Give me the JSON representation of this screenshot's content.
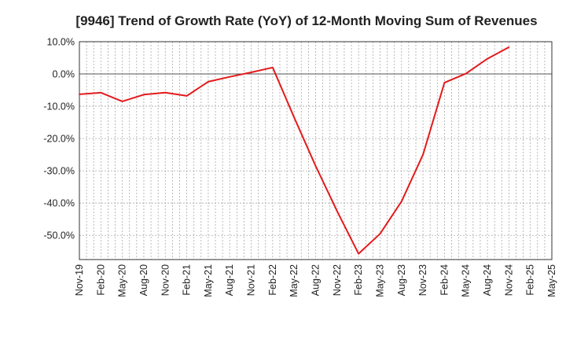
{
  "chart_data": {
    "type": "line",
    "title": "[9946]  Trend of Growth Rate (YoY) of 12-Month Moving Sum of Revenues",
    "xlabel": "",
    "ylabel": "",
    "ylim": [
      -57.5,
      10
    ],
    "yticks": [
      10,
      0,
      -10,
      -20,
      -30,
      -40,
      -50
    ],
    "ytick_labels": [
      "10.0%",
      "0.0%",
      "-10.0%",
      "-20.0%",
      "-30.0%",
      "-40.0%",
      "-50.0%"
    ],
    "xtick_labels": [
      "Nov-19",
      "Feb-20",
      "May-20",
      "Aug-20",
      "Nov-20",
      "Feb-21",
      "May-21",
      "Aug-21",
      "Nov-21",
      "Feb-22",
      "May-22",
      "Aug-22",
      "Nov-22",
      "Feb-23",
      "May-23",
      "Aug-23",
      "Nov-23",
      "Feb-24",
      "May-24",
      "Aug-24",
      "Nov-24",
      "Feb-25",
      "May-25"
    ],
    "grid": true,
    "line_color": "#e31a1c",
    "series": [
      {
        "x": [
          "Nov-19",
          "Feb-20",
          "May-20",
          "Aug-20",
          "Nov-20",
          "Feb-21",
          "May-21",
          "Aug-21",
          "Nov-21",
          "Feb-22",
          "May-22",
          "Aug-22",
          "Nov-22",
          "Feb-23",
          "May-23",
          "Aug-23",
          "Nov-23",
          "Feb-24",
          "May-24",
          "Aug-24",
          "Nov-24"
        ],
        "values": [
          -6.3,
          -5.8,
          -8.5,
          -6.4,
          -5.8,
          -6.8,
          -2.4,
          -0.9,
          0.5,
          2.0,
          -13.5,
          -28.5,
          -42.5,
          -55.7,
          -49.5,
          -39.5,
          -25.0,
          -2.7,
          0.1,
          4.7,
          8.3
        ]
      }
    ]
  }
}
